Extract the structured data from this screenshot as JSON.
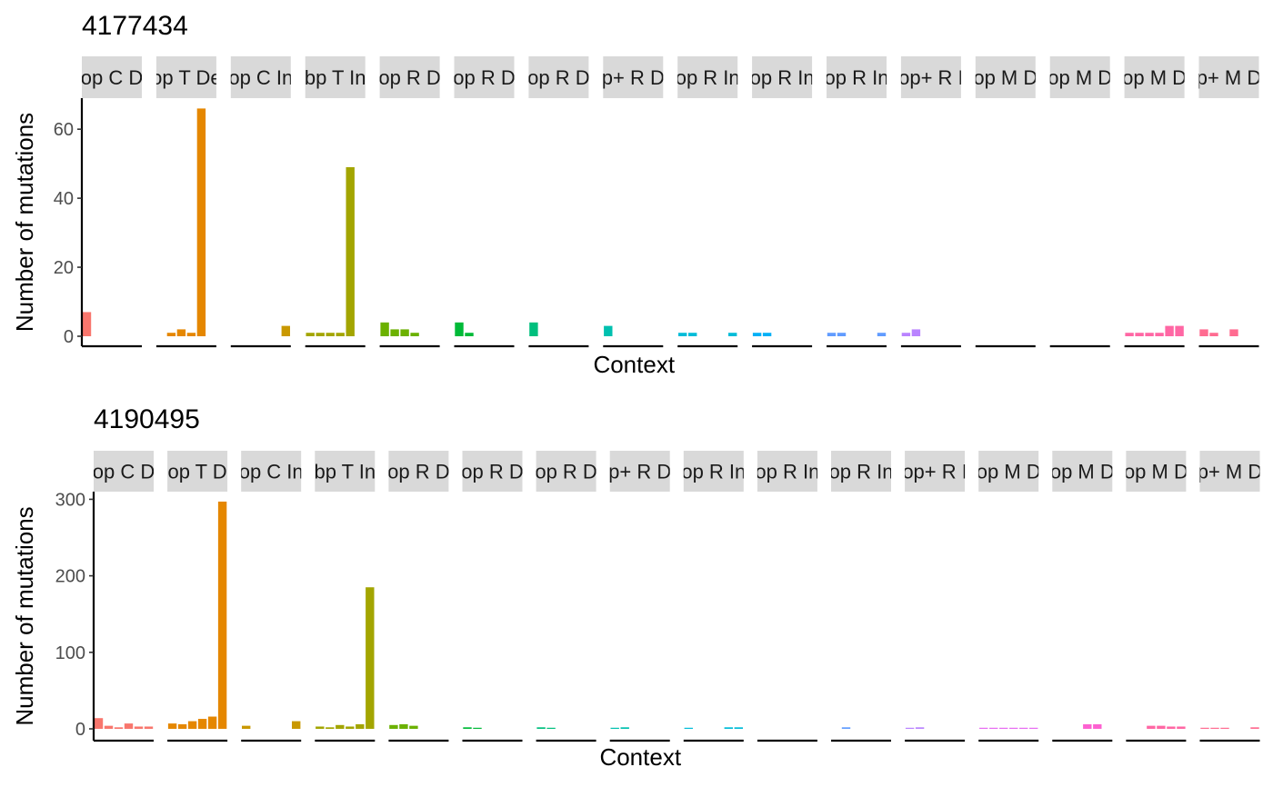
{
  "chart_data": [
    {
      "type": "bar",
      "title": "4177434",
      "xlabel": "Context",
      "ylabel": "Number of mutations",
      "ylim": [
        0,
        69
      ],
      "yticks": [
        0,
        20,
        40,
        60
      ],
      "grid": false,
      "facet_labels": [
        "op C D",
        "op T De",
        "op C In",
        "bp T In",
        "op R D",
        "op R D",
        "op R D",
        "p+ R D",
        "op R In",
        "op R In",
        "op R In",
        "op+ R I",
        "op M D",
        "op M D",
        "op M D",
        "p+ M D"
      ],
      "facet_values": [
        [
          7,
          0,
          0,
          0,
          0,
          0
        ],
        [
          0,
          1,
          2,
          1,
          66,
          0
        ],
        [
          0,
          0,
          0,
          0,
          0,
          3
        ],
        [
          1,
          1,
          1,
          1,
          49,
          0
        ],
        [
          4,
          2,
          2,
          1,
          0,
          0
        ],
        [
          4,
          1,
          0,
          0,
          0,
          0
        ],
        [
          4,
          0,
          0,
          0,
          0,
          0
        ],
        [
          3,
          0,
          0,
          0,
          0,
          0
        ],
        [
          1,
          1,
          0,
          0,
          0,
          1
        ],
        [
          1,
          1,
          0,
          0,
          0,
          0
        ],
        [
          1,
          1,
          0,
          0,
          0,
          1
        ],
        [
          1,
          2,
          0,
          0,
          0,
          0
        ],
        [
          0,
          0,
          0,
          0,
          0,
          0
        ],
        [
          0,
          0,
          0,
          0,
          0,
          0
        ],
        [
          1,
          1,
          1,
          1,
          3,
          3
        ],
        [
          2,
          1,
          0,
          2,
          0,
          0
        ]
      ]
    },
    {
      "type": "bar",
      "title": "4190495",
      "xlabel": "Context",
      "ylabel": "Number of mutations",
      "ylim": [
        0,
        310
      ],
      "yticks": [
        0,
        100,
        200,
        300
      ],
      "grid": false,
      "facet_labels": [
        "op C D",
        "op T D",
        "op C In",
        "bp T In",
        "op R D",
        "op R D",
        "op R D",
        "p+ R D",
        "op R In",
        "op R In",
        "op R In",
        "op+ R I",
        "op M D",
        "op M D",
        "op M D",
        "p+ M D"
      ],
      "facet_values": [
        [
          14,
          4,
          2,
          7,
          3,
          3
        ],
        [
          7,
          6,
          10,
          13,
          16,
          297
        ],
        [
          4,
          0,
          0,
          0,
          0,
          10
        ],
        [
          3,
          2,
          5,
          3,
          6,
          185
        ],
        [
          5,
          6,
          4,
          0,
          0,
          0
        ],
        [
          2,
          1,
          0,
          0,
          0,
          0
        ],
        [
          2,
          1,
          0,
          0,
          0,
          0
        ],
        [
          1,
          2,
          0,
          0,
          0,
          0
        ],
        [
          1,
          0,
          0,
          0,
          2,
          2
        ],
        [
          0,
          0,
          0,
          0,
          0,
          0
        ],
        [
          0,
          2,
          0,
          0,
          0,
          0
        ],
        [
          1,
          2,
          0,
          0,
          0,
          0
        ],
        [
          1,
          1,
          1,
          1,
          1,
          1
        ],
        [
          0,
          0,
          0,
          6,
          6,
          0
        ],
        [
          0,
          0,
          4,
          4,
          3,
          3
        ],
        [
          1,
          1,
          1,
          0,
          0,
          2
        ]
      ]
    }
  ],
  "facet_colors": [
    "#F8766D",
    "#E58700",
    "#C99800",
    "#A3A500",
    "#6BB100",
    "#00BA38",
    "#00BF7D",
    "#00C0AF",
    "#00BCD8",
    "#00B0F6",
    "#619CFF",
    "#B983FF",
    "#E76BF3",
    "#FD61D1",
    "#FF67A4",
    "#FF6C91"
  ]
}
